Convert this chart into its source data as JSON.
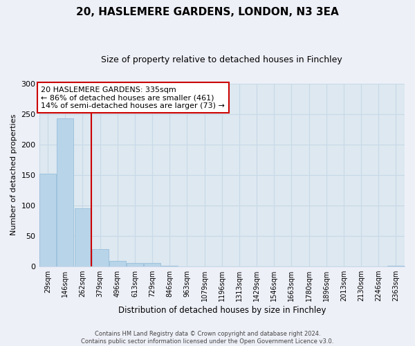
{
  "title": "20, HASLEMERE GARDENS, LONDON, N3 3EA",
  "subtitle": "Size of property relative to detached houses in Finchley",
  "xlabel": "Distribution of detached houses by size in Finchley",
  "ylabel": "Number of detached properties",
  "bin_labels": [
    "29sqm",
    "146sqm",
    "262sqm",
    "379sqm",
    "496sqm",
    "613sqm",
    "729sqm",
    "846sqm",
    "963sqm",
    "1079sqm",
    "1196sqm",
    "1313sqm",
    "1429sqm",
    "1546sqm",
    "1663sqm",
    "1780sqm",
    "1896sqm",
    "2013sqm",
    "2130sqm",
    "2246sqm",
    "2363sqm"
  ],
  "bar_heights": [
    152,
    243,
    95,
    28,
    9,
    5,
    5,
    1,
    0,
    0,
    0,
    0,
    0,
    0,
    0,
    0,
    0,
    0,
    0,
    0,
    1
  ],
  "bar_color": "#b8d4e8",
  "bar_edge_color": "#8fb8d8",
  "property_line_index": 2,
  "property_line_color": "#cc0000",
  "box_text_line1": "20 HASLEMERE GARDENS: 335sqm",
  "box_text_line2": "← 86% of detached houses are smaller (461)",
  "box_text_line3": "14% of semi-detached houses are larger (73) →",
  "box_color": "#cc0000",
  "ylim": [
    0,
    300
  ],
  "yticks": [
    0,
    50,
    100,
    150,
    200,
    250,
    300
  ],
  "footer_line1": "Contains HM Land Registry data © Crown copyright and database right 2024.",
  "footer_line2": "Contains public sector information licensed under the Open Government Licence v3.0.",
  "bg_color": "#eef0f8",
  "plot_bg_color": "#dde8f0",
  "grid_color": "#c8d8e8"
}
